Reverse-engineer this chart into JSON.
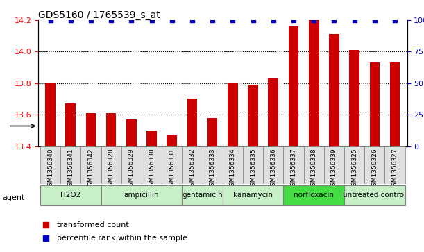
{
  "title": "GDS5160 / 1765539_s_at",
  "samples": [
    "GSM1356340",
    "GSM1356341",
    "GSM1356342",
    "GSM1356328",
    "GSM1356329",
    "GSM1356330",
    "GSM1356331",
    "GSM1356332",
    "GSM1356333",
    "GSM1356334",
    "GSM1356335",
    "GSM1356336",
    "GSM1356337",
    "GSM1356338",
    "GSM1356339",
    "GSM1356325",
    "GSM1356326",
    "GSM1356327"
  ],
  "bar_values": [
    13.8,
    13.67,
    13.61,
    13.61,
    13.57,
    13.5,
    13.47,
    13.7,
    13.58,
    13.8,
    13.79,
    13.83,
    14.16,
    14.2,
    14.11,
    14.01,
    13.93,
    13.93
  ],
  "percentile_values": [
    100,
    100,
    100,
    100,
    100,
    100,
    100,
    100,
    100,
    100,
    100,
    100,
    100,
    100,
    100,
    100,
    100,
    100
  ],
  "groups": [
    {
      "label": "H2O2",
      "start": 0,
      "end": 3,
      "color": "#c8f0c8"
    },
    {
      "label": "ampicillin",
      "start": 3,
      "end": 7,
      "color": "#c8f0c8"
    },
    {
      "label": "gentamicin",
      "start": 7,
      "end": 9,
      "color": "#c8f0c8"
    },
    {
      "label": "kanamycin",
      "start": 9,
      "end": 12,
      "color": "#c8f0c8"
    },
    {
      "label": "norfloxacin",
      "start": 12,
      "end": 15,
      "color": "#44dd44"
    },
    {
      "label": "untreated control",
      "start": 15,
      "end": 18,
      "color": "#c8f0c8"
    }
  ],
  "bar_color": "#cc0000",
  "percentile_color": "#0000cc",
  "ylim_left": [
    13.4,
    14.2
  ],
  "ylim_right": [
    0,
    100
  ],
  "yticks_left": [
    13.4,
    13.6,
    13.8,
    14.0,
    14.2
  ],
  "yticks_right": [
    0,
    25,
    50,
    75,
    100
  ],
  "ytick_labels_right": [
    "0",
    "25",
    "50",
    "75",
    "100%"
  ],
  "grid_values": [
    13.6,
    13.8,
    14.0
  ],
  "agent_label": "agent",
  "legend_bar": "transformed count",
  "legend_pct": "percentile rank within the sample"
}
